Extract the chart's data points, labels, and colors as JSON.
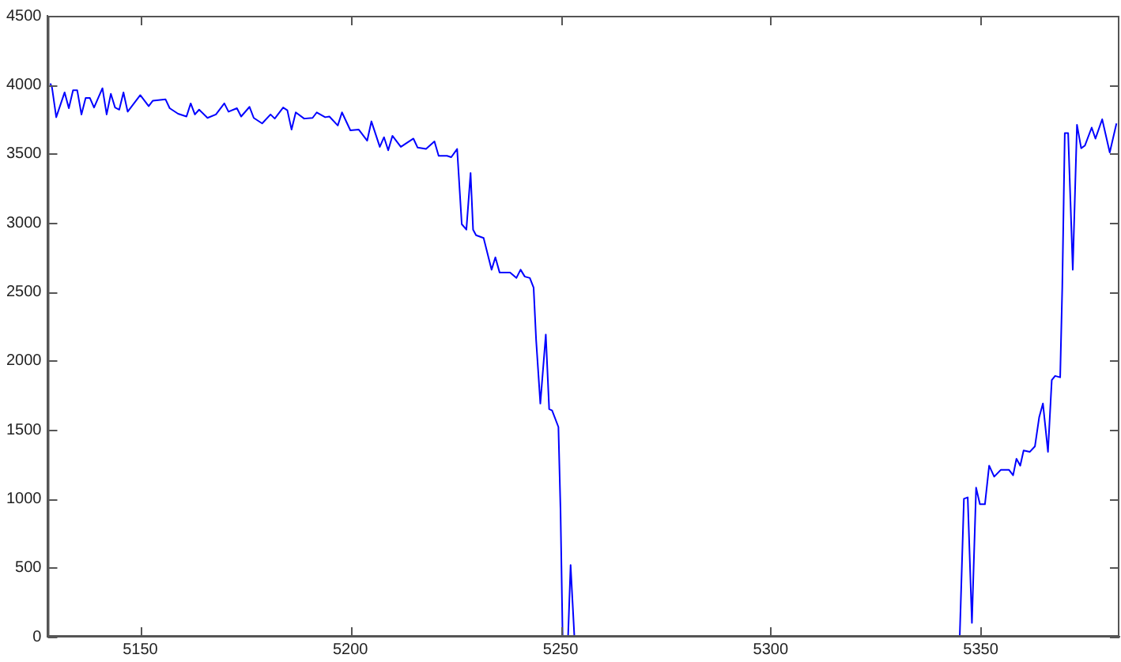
{
  "chart_data": {
    "type": "line",
    "x": [
      5128.6,
      5129,
      5130,
      5132,
      5133,
      5134,
      5135,
      5136,
      5137,
      5138,
      5139,
      5141,
      5142,
      5143,
      5144,
      5145,
      5146,
      5147,
      5150,
      5152,
      5153,
      5156,
      5157,
      5159,
      5161,
      5162,
      5163,
      5164,
      5166,
      5168,
      5170,
      5171,
      5173,
      5174,
      5176,
      5177,
      5179,
      5181,
      5182,
      5184,
      5185,
      5186,
      5187,
      5189,
      5191,
      5192,
      5194,
      5195,
      5197,
      5198,
      5200,
      5202,
      5204,
      5205,
      5207,
      5208,
      5209,
      5210,
      5212,
      5215,
      5216,
      5218,
      5220,
      5221,
      5223,
      5224,
      5225.4,
      5226.5,
      5227.6,
      5228.6,
      5229.2,
      5229.9,
      5231.7,
      5233.6,
      5234.5,
      5235.5,
      5238,
      5239.5,
      5240.5,
      5241.5,
      5242.7,
      5243.6,
      5244.2,
      5245.2,
      5246.5,
      5247.3,
      5248,
      5249.5,
      5250,
      5250.5,
      5251,
      5251.8,
      5252.4,
      5253.3,
      5300,
      5345,
      5346,
      5346.9,
      5347.9,
      5348.9,
      5349.8,
      5351,
      5352,
      5353.2,
      5354.8,
      5356.7,
      5357.7,
      5358.5,
      5359.4,
      5360.2,
      5361.7,
      5362.9,
      5363.9,
      5364.8,
      5366,
      5366.9,
      5367.7,
      5368.9,
      5369.4,
      5370,
      5370.8,
      5371.9,
      5372.9,
      5373.9,
      5374.8,
      5376.4,
      5377.3,
      5378.9,
      5380.7,
      5382.3
    ],
    "series": [
      {
        "color": "#0000ff",
        "values": [
          4010,
          3980,
          3765,
          3945,
          3830,
          3960,
          3960,
          3785,
          3905,
          3905,
          3835,
          3975,
          3785,
          3935,
          3835,
          3820,
          3945,
          3805,
          3925,
          3845,
          3885,
          3895,
          3830,
          3790,
          3770,
          3865,
          3785,
          3820,
          3760,
          3785,
          3865,
          3805,
          3830,
          3770,
          3840,
          3760,
          3720,
          3785,
          3755,
          3835,
          3815,
          3675,
          3800,
          3755,
          3760,
          3800,
          3765,
          3770,
          3705,
          3800,
          3670,
          3675,
          3595,
          3735,
          3550,
          3620,
          3525,
          3630,
          3550,
          3610,
          3545,
          3535,
          3590,
          3485,
          3485,
          3475,
          3535,
          2990,
          2950,
          3360,
          2950,
          2910,
          2890,
          2660,
          2750,
          2640,
          2640,
          2600,
          2660,
          2610,
          2600,
          2530,
          2150,
          1690,
          2190,
          1650,
          1640,
          1520,
          920,
          0,
          null,
          0,
          520,
          0,
          null,
          0,
          1000,
          1010,
          100,
          1080,
          960,
          960,
          1240,
          1160,
          1210,
          1210,
          1170,
          1290,
          1240,
          1350,
          1340,
          1380,
          1590,
          1690,
          1340,
          1860,
          1890,
          1880,
          2530,
          3650,
          3650,
          2660,
          3710,
          3540,
          3560,
          3690,
          3610,
          3750,
          3510,
          3720
        ]
      }
    ],
    "xlim": [
      5128,
      5383
    ],
    "xticks": [
      5150,
      5200,
      5250,
      5300,
      5350
    ],
    "ylim": [
      0,
      4500
    ],
    "yticks": [
      0,
      500,
      1000,
      1500,
      2000,
      2500,
      3000,
      3500,
      4000,
      4500
    ],
    "grid": false,
    "legend": false,
    "marker": "none",
    "line_style": "solid"
  }
}
